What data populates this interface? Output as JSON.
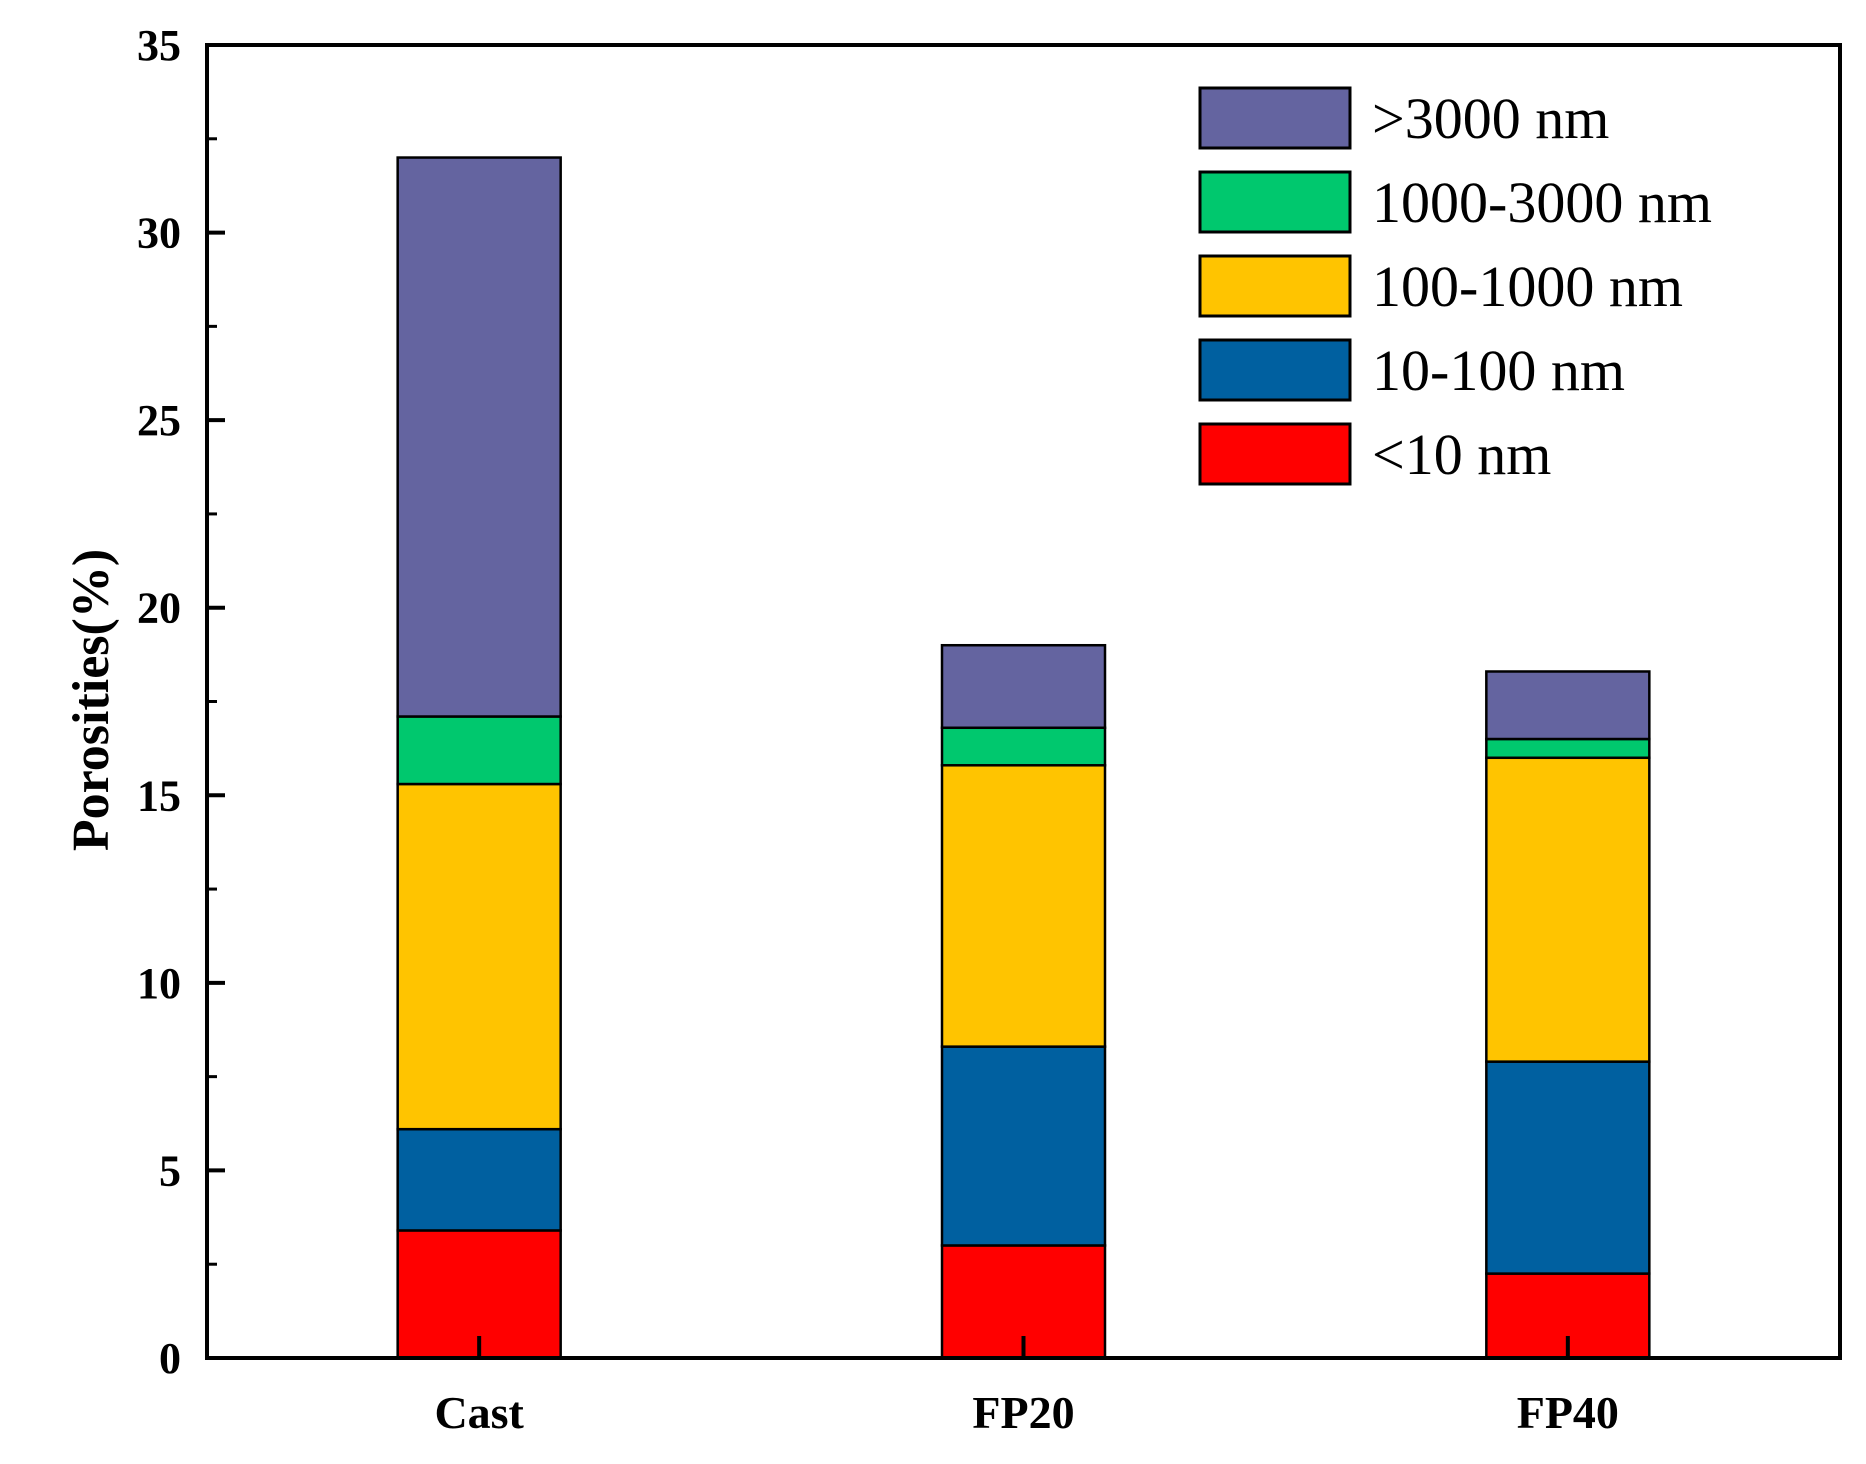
{
  "chart_data": {
    "type": "bar",
    "stacked": true,
    "title": "",
    "xlabel": "",
    "ylabel": "Porosities(%)",
    "ylim": [
      0,
      35
    ],
    "yticks": [
      0,
      5,
      10,
      15,
      20,
      25,
      30,
      35
    ],
    "grid": false,
    "legend_position": "top-right",
    "categories": [
      "Cast",
      "FP20",
      "FP40"
    ],
    "series": [
      {
        "name": "<10 nm",
        "color": "#ff0000",
        "values": [
          3.4,
          3.0,
          2.25
        ]
      },
      {
        "name": "10-100 nm",
        "color": "#0060a0",
        "values": [
          2.7,
          5.3,
          5.65
        ]
      },
      {
        "name": "100-1000 nm",
        "color": "#ffc400",
        "values": [
          9.2,
          7.5,
          8.1
        ]
      },
      {
        "name": "1000-3000 nm",
        "color": "#00c86e",
        "values": [
          1.8,
          1.0,
          0.5
        ]
      },
      {
        "name": ">3000 nm",
        "color": "#6464a0",
        "values": [
          14.9,
          2.2,
          1.8
        ]
      }
    ]
  }
}
